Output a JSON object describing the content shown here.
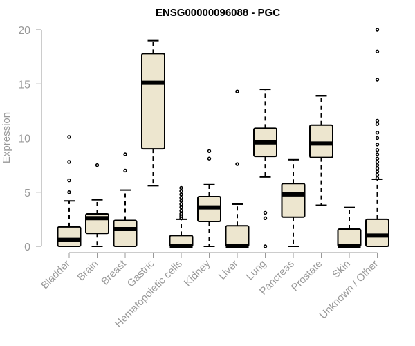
{
  "chart_data": {
    "type": "boxplot",
    "title": "ENSG00000096088 - PGC",
    "xlabel": "",
    "ylabel": "Expression",
    "ylim": [
      0,
      20
    ],
    "yticks": [
      0,
      5,
      10,
      15,
      20
    ],
    "grid": false,
    "categories": [
      "Bladder",
      "Brain",
      "Breast",
      "Gastric",
      "Hematopoietic cells",
      "Kidney",
      "Liver",
      "Lung",
      "Pancreas",
      "Prostate",
      "Skin",
      "Unknown / Other"
    ],
    "boxes": [
      {
        "category": "Bladder",
        "min": 0,
        "q1": 0,
        "median": 0.6,
        "q3": 1.8,
        "max": 4.2,
        "outliers": [
          5.0,
          6.1,
          7.8,
          10.1
        ]
      },
      {
        "category": "Brain",
        "min": 0,
        "q1": 1.2,
        "median": 2.6,
        "q3": 3.0,
        "max": 4.3,
        "outliers": [
          7.5
        ]
      },
      {
        "category": "Breast",
        "min": 0,
        "q1": 0,
        "median": 1.6,
        "q3": 2.4,
        "max": 5.2,
        "outliers": [
          7.0,
          8.5
        ]
      },
      {
        "category": "Gastric",
        "min": 5.6,
        "q1": 9.0,
        "median": 15.1,
        "q3": 17.8,
        "max": 19.0,
        "outliers": []
      },
      {
        "category": "Hematopoietic cells",
        "min": 0,
        "q1": 0,
        "median": 0.05,
        "q3": 1.0,
        "max": 2.5,
        "outliers": [
          2.6,
          2.8,
          3.0,
          3.3,
          3.6,
          3.9,
          4.2,
          4.5,
          4.8,
          5.1,
          5.4
        ]
      },
      {
        "category": "Kidney",
        "min": 0,
        "q1": 2.3,
        "median": 3.6,
        "q3": 4.6,
        "max": 5.7,
        "outliers": [
          8.1,
          8.8
        ]
      },
      {
        "category": "Liver",
        "min": 0,
        "q1": 0,
        "median": 0.05,
        "q3": 1.9,
        "max": 3.9,
        "outliers": [
          7.6,
          14.3
        ]
      },
      {
        "category": "Lung",
        "min": 6.4,
        "q1": 8.3,
        "median": 9.6,
        "q3": 10.9,
        "max": 14.5,
        "outliers": [
          0.0,
          2.6,
          3.1
        ]
      },
      {
        "category": "Pancreas",
        "min": 0,
        "q1": 2.7,
        "median": 4.8,
        "q3": 5.8,
        "max": 8.0,
        "outliers": []
      },
      {
        "category": "Prostate",
        "min": 3.8,
        "q1": 8.2,
        "median": 9.5,
        "q3": 11.2,
        "max": 13.9,
        "outliers": []
      },
      {
        "category": "Skin",
        "min": 0,
        "q1": 0,
        "median": 0.05,
        "q3": 1.6,
        "max": 3.6,
        "outliers": []
      },
      {
        "category": "Unknown / Other",
        "min": 0,
        "q1": 0,
        "median": 1.0,
        "q3": 2.5,
        "max": 6.2,
        "outliers": [
          6.3,
          6.6,
          6.9,
          7.2,
          7.5,
          7.8,
          8.1,
          8.5,
          8.9,
          9.4,
          10.0,
          10.5,
          11.3,
          11.6,
          15.4,
          18.0,
          20.0
        ]
      }
    ]
  },
  "colors": {
    "box_fill": "#ede6cf",
    "box_stroke": "#000000",
    "axis": "#999999",
    "title": "#000000"
  }
}
